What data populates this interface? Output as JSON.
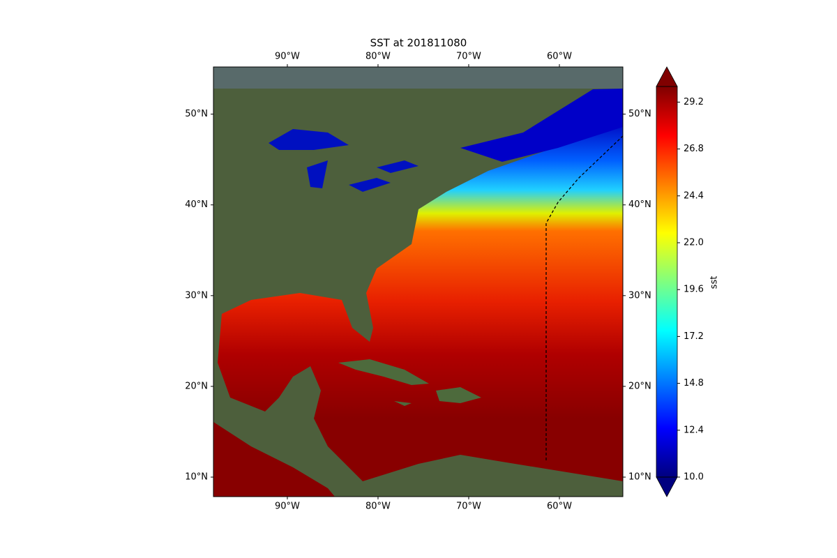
{
  "title": "SST at 201811080",
  "map": {
    "xlim": [
      -98.15,
      -53
    ],
    "ylim": [
      7.85,
      55.2
    ],
    "lon_ticks": [
      {
        "value": -90,
        "label": "90°W"
      },
      {
        "value": -80,
        "label": "80°W"
      },
      {
        "value": -70,
        "label": "70°W"
      },
      {
        "value": -60,
        "label": "60°W"
      }
    ],
    "lat_ticks": [
      {
        "value": 10,
        "label": "10°N"
      },
      {
        "value": 20,
        "label": "20°N"
      },
      {
        "value": 30,
        "label": "30°N"
      },
      {
        "value": 40,
        "label": "40°N"
      },
      {
        "value": 50,
        "label": "50°N"
      }
    ]
  },
  "colorbar": {
    "label": "sst",
    "clim": [
      10,
      30
    ],
    "ticks": [
      {
        "value": 10,
        "label": "10.0"
      },
      {
        "value": 12.4,
        "label": "12.4"
      },
      {
        "value": 14.8,
        "label": "14.8"
      },
      {
        "value": 17.2,
        "label": "17.2"
      },
      {
        "value": 19.6,
        "label": "19.6"
      },
      {
        "value": 22,
        "label": "22.0"
      },
      {
        "value": 24.4,
        "label": "24.4"
      },
      {
        "value": 26.8,
        "label": "26.8"
      },
      {
        "value": 29.2,
        "label": "29.2"
      }
    ]
  }
}
